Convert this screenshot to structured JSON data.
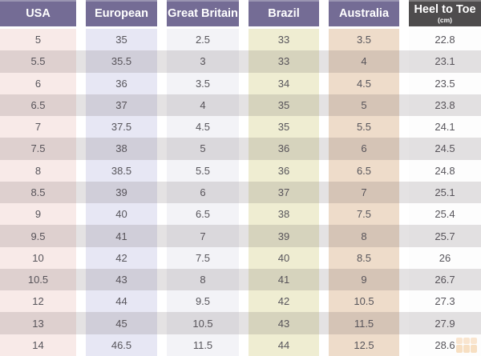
{
  "chart_data": {
    "type": "table",
    "columns": [
      {
        "label": "USA",
        "tint": "#f8eae8",
        "header_bg": "#746c95"
      },
      {
        "label": "European",
        "tint": "#e7e7f4",
        "header_bg": "#746c95"
      },
      {
        "label": "Great Britain",
        "tint": "#f3f3f7",
        "header_bg": "#746c95"
      },
      {
        "label": "Brazil",
        "tint": "#efedd2",
        "header_bg": "#746c95"
      },
      {
        "label": "Australia",
        "tint": "#eedcca",
        "header_bg": "#746c95"
      },
      {
        "label": "Heel to Toe",
        "sublabel": "(cm)",
        "tint": "#fdfdfd",
        "header_bg": "#4e4c4d"
      }
    ],
    "rows": [
      [
        "5",
        "35",
        "2.5",
        "33",
        "3.5",
        "22.8"
      ],
      [
        "5.5",
        "35.5",
        "3",
        "33",
        "4",
        "23.1"
      ],
      [
        "6",
        "36",
        "3.5",
        "34",
        "4.5",
        "23.5"
      ],
      [
        "6.5",
        "37",
        "4",
        "35",
        "5",
        "23.8"
      ],
      [
        "7",
        "37.5",
        "4.5",
        "35",
        "5.5",
        "24.1"
      ],
      [
        "7.5",
        "38",
        "5",
        "36",
        "6",
        "24.5"
      ],
      [
        "8",
        "38.5",
        "5.5",
        "36",
        "6.5",
        "24.8"
      ],
      [
        "8.5",
        "39",
        "6",
        "37",
        "7",
        "25.1"
      ],
      [
        "9",
        "40",
        "6.5",
        "38",
        "7.5",
        "25.4"
      ],
      [
        "9.5",
        "41",
        "7",
        "39",
        "8",
        "25.7"
      ],
      [
        "10",
        "42",
        "7.5",
        "40",
        "8.5",
        "26"
      ],
      [
        "10.5",
        "43",
        "8",
        "41",
        "9",
        "26.7"
      ],
      [
        "12",
        "44",
        "9.5",
        "42",
        "10.5",
        "27.3"
      ],
      [
        "13",
        "45",
        "10.5",
        "43",
        "11.5",
        "27.9"
      ],
      [
        "14",
        "46.5",
        "11.5",
        "44",
        "12.5",
        "28.6"
      ]
    ]
  },
  "colors": {
    "header_purple": "#746c95",
    "header_dark": "#4e4c4d",
    "header_text": "#ffffff",
    "body_text": "#57555b",
    "stripe_overlay": "rgba(84,72,78,0.16)",
    "watermark_orange": "#e8932c"
  }
}
